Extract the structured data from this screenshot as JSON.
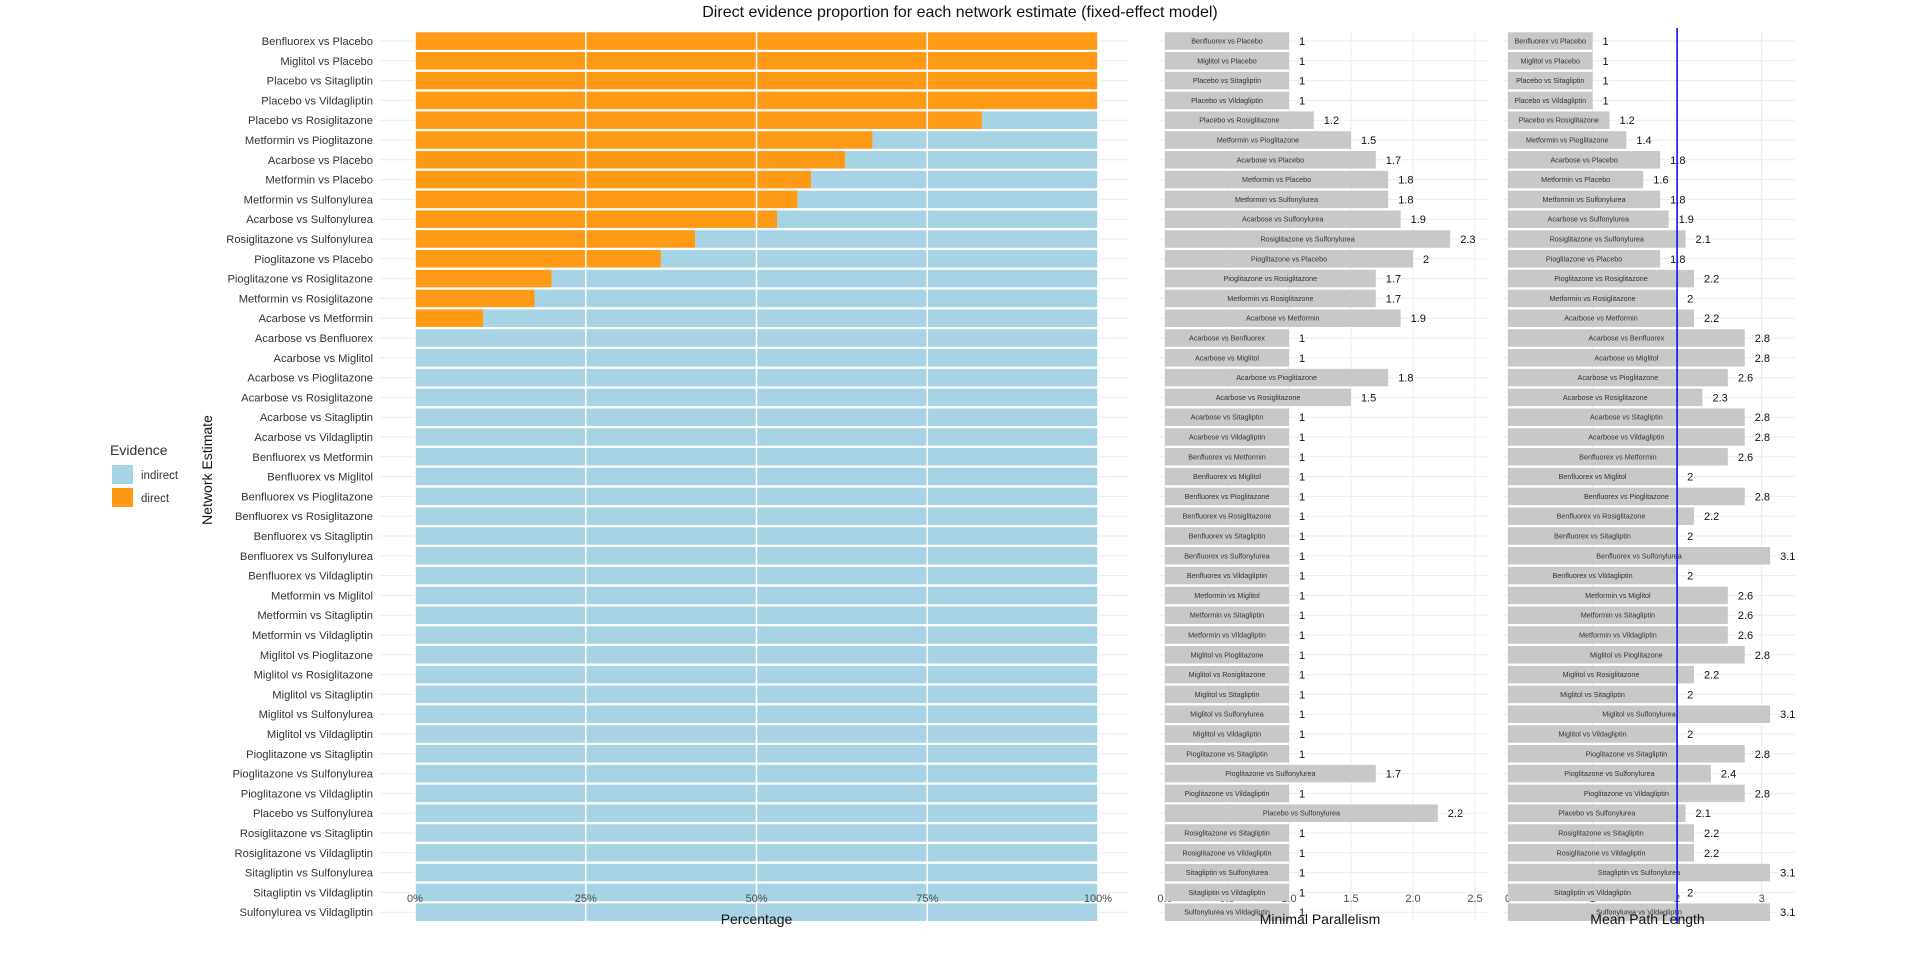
{
  "title": "Direct evidence proportion for each network estimate (fixed-effect model)",
  "legend": {
    "title": "Evidence",
    "items": [
      {
        "label": "indirect",
        "color": "#a6d4e4"
      },
      {
        "label": "direct",
        "color": "#ff9a16"
      }
    ],
    "position": "left"
  },
  "colors": {
    "indirect": "#a6d4e4",
    "direct": "#ff9a16",
    "bar_grey": "#c8c8c8",
    "reference_line": "#0000ff",
    "grid": "#ebebeb"
  },
  "chart_data": [
    {
      "type": "bar",
      "orientation": "horizontal",
      "stacked": true,
      "xlabel": "Percentage",
      "ylabel": "Network Estimate",
      "xlim": [
        0,
        1
      ],
      "xticks": [
        0,
        0.25,
        0.5,
        0.75,
        1
      ],
      "xtick_labels": [
        "0%",
        "25%",
        "50%",
        "75%",
        "100%"
      ],
      "grid": true,
      "categories": [
        "Benfluorex vs Placebo",
        "Miglitol vs Placebo",
        "Placebo vs Sitagliptin",
        "Placebo vs Vildagliptin",
        "Placebo vs Rosiglitazone",
        "Metformin vs Pioglitazone",
        "Acarbose vs Placebo",
        "Metformin vs Placebo",
        "Metformin vs Sulfonylurea",
        "Acarbose vs Sulfonylurea",
        "Rosiglitazone vs Sulfonylurea",
        "Pioglitazone vs Placebo",
        "Pioglitazone vs Rosiglitazone",
        "Metformin vs Rosiglitazone",
        "Acarbose vs Metformin",
        "Acarbose vs Benfluorex",
        "Acarbose vs Miglitol",
        "Acarbose vs Pioglitazone",
        "Acarbose vs Rosiglitazone",
        "Acarbose vs Sitagliptin",
        "Acarbose vs Vildagliptin",
        "Benfluorex vs Metformin",
        "Benfluorex vs Miglitol",
        "Benfluorex vs Pioglitazone",
        "Benfluorex vs Rosiglitazone",
        "Benfluorex vs Sitagliptin",
        "Benfluorex vs Sulfonylurea",
        "Benfluorex vs Vildagliptin",
        "Metformin vs Miglitol",
        "Metformin vs Sitagliptin",
        "Metformin vs Vildagliptin",
        "Miglitol vs Pioglitazone",
        "Miglitol vs Rosiglitazone",
        "Miglitol vs Sitagliptin",
        "Miglitol vs Sulfonylurea",
        "Miglitol vs Vildagliptin",
        "Pioglitazone vs Sitagliptin",
        "Pioglitazone vs Sulfonylurea",
        "Pioglitazone vs Vildagliptin",
        "Placebo vs Sulfonylurea",
        "Rosiglitazone vs Sitagliptin",
        "Rosiglitazone vs Vildagliptin",
        "Sitagliptin vs Sulfonylurea",
        "Sitagliptin vs Vildagliptin",
        "Sulfonylurea vs Vildagliptin"
      ],
      "series": [
        {
          "name": "direct",
          "values": [
            1,
            1,
            1,
            1,
            0.83,
            0.67,
            0.63,
            0.58,
            0.56,
            0.53,
            0.41,
            0.36,
            0.2,
            0.175,
            0.1,
            0,
            0,
            0,
            0,
            0,
            0,
            0,
            0,
            0,
            0,
            0,
            0,
            0,
            0,
            0,
            0,
            0,
            0,
            0,
            0,
            0,
            0,
            0,
            0,
            0,
            0,
            0,
            0,
            0,
            0
          ]
        },
        {
          "name": "indirect",
          "values": [
            0,
            0,
            0,
            0,
            0.17,
            0.33,
            0.37,
            0.42,
            0.44,
            0.47,
            0.59,
            0.64,
            0.8,
            0.825,
            0.9,
            1,
            1,
            1,
            1,
            1,
            1,
            1,
            1,
            1,
            1,
            1,
            1,
            1,
            1,
            1,
            1,
            1,
            1,
            1,
            1,
            1,
            1,
            1,
            1,
            1,
            1,
            1,
            1,
            1,
            1
          ]
        }
      ]
    },
    {
      "type": "bar",
      "orientation": "horizontal",
      "xlabel": "Minimal Parallelism",
      "xlim": [
        0,
        2.5
      ],
      "xticks": [
        0,
        0.5,
        1,
        1.5,
        2,
        2.5
      ],
      "xtick_labels": [
        "0.0",
        "0.5",
        "1.0",
        "1.5",
        "2.0",
        "2.5"
      ],
      "values": [
        1,
        1,
        1,
        1,
        1.2,
        1.5,
        1.7,
        1.8,
        1.8,
        1.9,
        2.3,
        2,
        1.7,
        1.7,
        1.9,
        1,
        1,
        1.8,
        1.5,
        1,
        1,
        1,
        1,
        1,
        1,
        1,
        1,
        1,
        1,
        1,
        1,
        1,
        1,
        1,
        1,
        1,
        1,
        1.7,
        1,
        2.2,
        1,
        1,
        1,
        1,
        1
      ],
      "value_labels": [
        "1",
        "1",
        "1",
        "1",
        "1.2",
        "1.5",
        "1.7",
        "1.8",
        "1.8",
        "1.9",
        "2.3",
        "2",
        "1.7",
        "1.7",
        "1.9",
        "1",
        "1",
        "1.8",
        "1.5",
        "1",
        "1",
        "1",
        "1",
        "1",
        "1",
        "1",
        "1",
        "1",
        "1",
        "1",
        "1",
        "1",
        "1",
        "1",
        "1",
        "1",
        "1",
        "1.7",
        "1",
        "2.2",
        "1",
        "1",
        "1",
        "1",
        "1"
      ]
    },
    {
      "type": "bar",
      "orientation": "horizontal",
      "xlabel": "Mean Path Length",
      "xlim": [
        0,
        3.3
      ],
      "xticks": [
        0,
        1,
        2,
        3
      ],
      "xtick_labels": [
        "0",
        "1",
        "2",
        "3"
      ],
      "reference_line": 2,
      "values": [
        1,
        1,
        1,
        1,
        1.2,
        1.4,
        1.8,
        1.6,
        1.8,
        1.9,
        2.1,
        1.8,
        2.2,
        2,
        2.2,
        2.8,
        2.8,
        2.6,
        2.3,
        2.8,
        2.8,
        2.6,
        2,
        2.8,
        2.2,
        2,
        3.1,
        2,
        2.6,
        2.6,
        2.6,
        2.8,
        2.2,
        2,
        3.1,
        2,
        2.8,
        2.4,
        2.8,
        2.1,
        2.2,
        2.2,
        3.1,
        2,
        3.1
      ],
      "value_labels": [
        "1",
        "1",
        "1",
        "1",
        "1.2",
        "1.4",
        "1.8",
        "1.6",
        "1.8",
        "1.9",
        "2.1",
        "1.8",
        "2.2",
        "2",
        "2.2",
        "2.8",
        "2.8",
        "2.6",
        "2.3",
        "2.8",
        "2.8",
        "2.6",
        "2",
        "2.8",
        "2.2",
        "2",
        "3.1",
        "2",
        "2.6",
        "2.6",
        "2.6",
        "2.8",
        "2.2",
        "2",
        "3.1",
        "2",
        "2.8",
        "2.4",
        "2.8",
        "2.1",
        "2.2",
        "2.2",
        "3.1",
        "2",
        "3.1"
      ]
    }
  ]
}
